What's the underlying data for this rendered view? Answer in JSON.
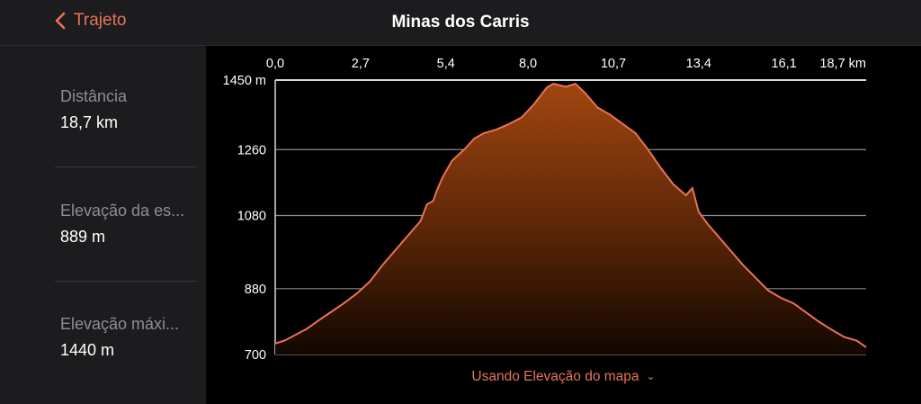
{
  "header": {
    "back_label": "Trajeto",
    "title": "Minas dos Carris"
  },
  "stats": [
    {
      "label": "Distância",
      "value": "18,7 km"
    },
    {
      "label": "Elevação da es...",
      "value": "889 m"
    },
    {
      "label": "Elevação máxi...",
      "value": "1440 m"
    }
  ],
  "footer": {
    "source_label": "Usando Elevação do mapa"
  },
  "colors": {
    "accent": "#e8735a",
    "fill_top": "#a0460f",
    "line": "#e8735a"
  },
  "chart_data": {
    "type": "area",
    "x_tick_labels": [
      "0,0",
      "2,7",
      "5,4",
      "8,0",
      "10,7",
      "13,4",
      "16,1",
      "18,7 km"
    ],
    "x_ticks": [
      0.0,
      2.7,
      5.4,
      8.0,
      10.7,
      13.4,
      16.1,
      18.7
    ],
    "y_tick_labels": [
      "1450 m",
      "1260",
      "1080",
      "880",
      "700"
    ],
    "y_ticks": [
      1450,
      1260,
      1080,
      880,
      700
    ],
    "xlim": [
      0,
      18.7
    ],
    "ylim": [
      700,
      1450
    ],
    "grid": true,
    "series": [
      {
        "x": [
          0.0,
          0.3,
          0.6,
          1.0,
          1.4,
          1.8,
          2.2,
          2.6,
          3.0,
          3.4,
          3.8,
          4.2,
          4.6,
          4.8,
          5.0,
          5.1,
          5.3,
          5.6,
          6.0,
          6.3,
          6.6,
          7.0,
          7.4,
          7.8,
          8.2,
          8.6,
          8.8,
          9.2,
          9.5,
          9.8,
          10.2,
          10.6,
          11.0,
          11.4,
          11.8,
          12.2,
          12.6,
          13.0,
          13.2,
          13.4,
          13.7,
          14.0,
          14.4,
          14.8,
          15.2,
          15.6,
          16.0,
          16.4,
          16.8,
          17.2,
          17.6,
          18.0,
          18.4,
          18.7
        ],
        "y": [
          730,
          738,
          752,
          770,
          795,
          818,
          842,
          868,
          900,
          945,
          985,
          1025,
          1065,
          1110,
          1120,
          1145,
          1185,
          1230,
          1262,
          1290,
          1305,
          1315,
          1330,
          1348,
          1385,
          1430,
          1440,
          1432,
          1440,
          1415,
          1375,
          1355,
          1330,
          1305,
          1260,
          1210,
          1165,
          1135,
          1155,
          1090,
          1055,
          1025,
          985,
          945,
          910,
          875,
          855,
          840,
          815,
          790,
          768,
          748,
          738,
          720
        ]
      }
    ]
  }
}
